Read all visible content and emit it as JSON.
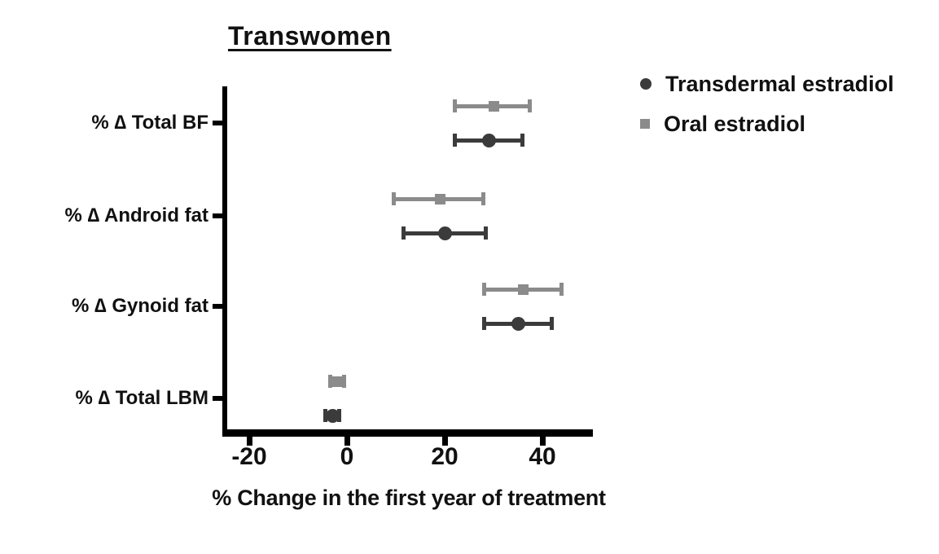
{
  "figure": {
    "background": "#ffffff",
    "text_color": "#111111",
    "axis_color": "#000000"
  },
  "chart_data": {
    "type": "scatter",
    "subtype": "horizontal-dot-plot-with-error-bars",
    "title": "Transwomen",
    "xlabel": "% Change in the first year of treatment",
    "ylabel": "",
    "categories": [
      "% ∆ Total BF",
      "% ∆ Android fat",
      "% ∆ Gynoid fat",
      "% ∆ Total LBM"
    ],
    "x_ticks": [
      -20,
      0,
      20,
      40
    ],
    "xlim": [
      -25.5,
      50.5
    ],
    "grid": false,
    "legend_position": "top-right",
    "series": [
      {
        "name": "Transdermal estradiol",
        "marker": "circle",
        "color": "#3b3b3b",
        "values": [
          {
            "category": "% ∆ Total BF",
            "mean": 29,
            "lo": 22,
            "hi": 36
          },
          {
            "category": "% ∆ Android fat",
            "mean": 20,
            "lo": 11.5,
            "hi": 28.5
          },
          {
            "category": "% ∆ Gynoid fat",
            "mean": 35,
            "lo": 28,
            "hi": 42
          },
          {
            "category": "% ∆ Total LBM",
            "mean": -3,
            "lo": -4.5,
            "hi": -1.5
          }
        ]
      },
      {
        "name": "Oral estradiol",
        "marker": "square",
        "color": "#8b8b8b",
        "values": [
          {
            "category": "% ∆ Total BF",
            "mean": 30,
            "lo": 22,
            "hi": 37.5
          },
          {
            "category": "% ∆ Android fat",
            "mean": 19,
            "lo": 9.5,
            "hi": 28
          },
          {
            "category": "% ∆ Gynoid fat",
            "mean": 36,
            "lo": 28,
            "hi": 44
          },
          {
            "category": "% ∆ Total LBM",
            "mean": -2,
            "lo": -3.5,
            "hi": -0.5
          }
        ]
      }
    ]
  }
}
